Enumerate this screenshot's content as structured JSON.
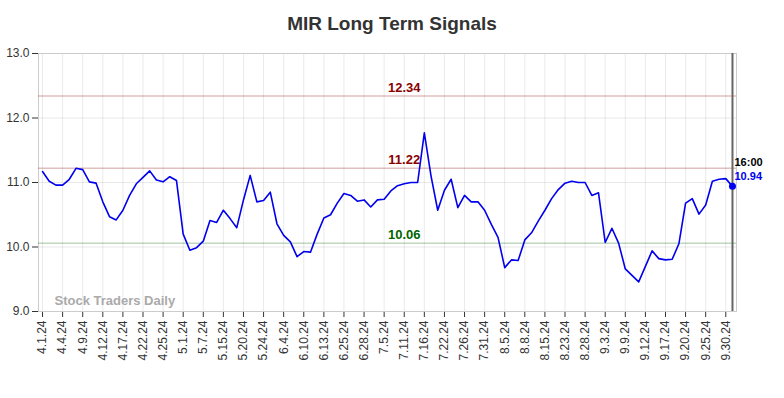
{
  "chart_data": {
    "type": "line",
    "title": "MIR Long Term Signals",
    "categories": [
      "4.1.24",
      null,
      null,
      "4.4.24",
      null,
      null,
      "4.9.24",
      null,
      null,
      "4.12.24",
      null,
      null,
      "4.17.24",
      null,
      null,
      "4.22.24",
      null,
      null,
      "4.25.24",
      null,
      null,
      "5.1.24",
      null,
      null,
      "5.7.24",
      null,
      null,
      "5.15.24",
      null,
      null,
      "5.20.24",
      null,
      null,
      "5.24.24",
      null,
      null,
      "6.4.24",
      null,
      null,
      "6.10.24",
      null,
      null,
      "6.13.24",
      null,
      null,
      "6.25.24",
      null,
      null,
      "6.28.24",
      null,
      null,
      "7.5.24",
      null,
      null,
      "7.11.24",
      null,
      null,
      "7.16.24",
      null,
      null,
      "7.22.24",
      null,
      null,
      "7.26.24",
      null,
      null,
      "7.31.24",
      null,
      null,
      "8.5.24",
      null,
      null,
      "8.8.24",
      null,
      null,
      "8.15.24",
      null,
      null,
      "8.23.24",
      null,
      null,
      "8.28.24",
      null,
      null,
      "9.3.24",
      null,
      null,
      "9.9.24",
      null,
      null,
      "9.12.24",
      null,
      null,
      "9.17.24",
      null,
      null,
      "9.20.24",
      null,
      null,
      "9.25.24",
      null,
      null,
      "9.30.24",
      null
    ],
    "values": [
      11.17,
      11.02,
      10.96,
      10.96,
      11.05,
      11.22,
      11.2,
      11.01,
      10.99,
      10.7,
      10.47,
      10.42,
      10.57,
      10.8,
      10.98,
      11.08,
      11.18,
      11.04,
      11.01,
      11.09,
      11.03,
      10.2,
      9.95,
      9.99,
      10.09,
      10.41,
      10.38,
      10.57,
      10.44,
      10.3,
      10.73,
      11.11,
      10.7,
      10.72,
      10.85,
      10.36,
      10.18,
      10.08,
      9.85,
      9.93,
      9.92,
      10.2,
      10.45,
      10.5,
      10.68,
      10.83,
      10.8,
      10.71,
      10.73,
      10.62,
      10.73,
      10.74,
      10.87,
      10.95,
      10.98,
      11.0,
      11.0,
      11.77,
      11.1,
      10.57,
      10.88,
      11.05,
      10.61,
      10.8,
      10.7,
      10.7,
      10.57,
      10.35,
      10.15,
      9.68,
      9.8,
      9.79,
      10.11,
      10.22,
      10.4,
      10.57,
      10.75,
      10.89,
      10.99,
      11.02,
      11.0,
      11.0,
      10.8,
      10.84,
      10.07,
      10.29,
      10.06,
      9.66,
      9.56,
      9.46,
      9.7,
      9.94,
      9.82,
      9.8,
      9.81,
      10.05,
      10.68,
      10.75,
      10.51,
      10.65,
      11.02,
      11.05,
      11.06,
      10.94
    ],
    "color": "#0000ee",
    "ylim": [
      9,
      13
    ],
    "yticks": [
      9,
      10,
      11,
      12,
      13
    ],
    "grid": true,
    "levels": [
      {
        "value": 12.34,
        "color": "#8b0000"
      },
      {
        "value": 11.22,
        "color": "#8b0000"
      },
      {
        "value": 10.06,
        "color": "#006400"
      }
    ],
    "last_time": "16:00",
    "watermark": "Stock Traders Daily"
  }
}
